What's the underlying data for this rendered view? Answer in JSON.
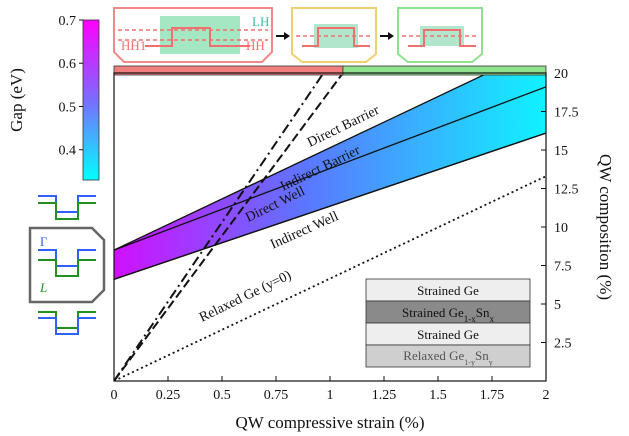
{
  "chart_data": {
    "type": "area",
    "xlabel": "QW compressive strain  (%)",
    "y2label": "QW composition (%)",
    "x_ticks": [
      "0",
      "0.25",
      "0.5",
      "0.75",
      "1",
      "1.25",
      "1.5",
      "1.75",
      "2"
    ],
    "y2_ticks": [
      "2.5",
      "5",
      "7.5",
      "10",
      "12.5",
      "15",
      "17.5",
      "20"
    ],
    "xlim": [
      0,
      2
    ],
    "ylim": [
      0,
      20
    ],
    "lines": [
      {
        "name": "Direct Barrier",
        "x": [
          0,
          1.73
        ],
        "y": [
          8.5,
          20
        ]
      },
      {
        "name": "Indirect Barrier",
        "x": [
          0,
          2
        ],
        "y": [
          8.5,
          19.1
        ]
      },
      {
        "name": "Direct Well",
        "x": [
          0,
          2
        ],
        "y": [
          6.6,
          16.1
        ]
      },
      {
        "name": "Indirect Well",
        "x": [
          0,
          2
        ],
        "y": [
          6.6,
          16.1
        ]
      },
      {
        "name": "Relaxed Ge (y=0)",
        "x": [
          0,
          2
        ],
        "y": [
          0,
          13.3
        ]
      },
      {
        "style": "dash-dot",
        "x": [
          0,
          0.97
        ],
        "y": [
          0,
          20
        ]
      },
      {
        "style": "dash",
        "x": [
          0,
          1.06
        ],
        "y": [
          0,
          20
        ]
      }
    ],
    "band_labels": {
      "direct_barrier": "Direct Barrier",
      "indirect_barrier": "Indirect Barrier",
      "direct_well": "Direct Well",
      "indirect_well": "Indirect Well",
      "relaxed": "Relaxed Ge (y=0)"
    },
    "region_bar": {
      "split_x": 0.97,
      "split_x2": 1.06,
      "left_color": "#f07f7f",
      "right_color": "#8fe08f"
    },
    "colorbar": {
      "label": "Gap (eV)",
      "ticks": [
        "0.4",
        "0.5",
        "0.6",
        "0.7"
      ],
      "range": [
        0.33,
        0.7
      ],
      "top_color": "#ff00ff",
      "bottom_color": "#00ffff"
    },
    "stack_legend": {
      "layers": [
        "Strained Ge",
        "Strained Ge",
        "Strained Ge",
        "Relaxed Ge"
      ],
      "sub": [
        "",
        "1-x",
        "",
        "1-y"
      ],
      "suffix": [
        "",
        "Sn",
        "",
        "Sn"
      ],
      "suffix_sub": [
        "",
        "x",
        "",
        "y"
      ]
    },
    "insets": {
      "hh1": "HH1",
      "lh": "LH",
      "hh": "HH",
      "gamma": "Γ",
      "l": "L"
    }
  }
}
